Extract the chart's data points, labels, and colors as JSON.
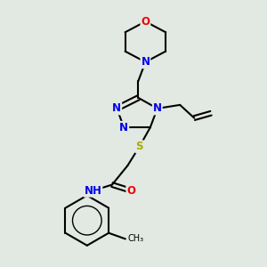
{
  "bg_color": "#e2e8e2",
  "bond_color": "#000000",
  "bond_width": 1.5,
  "atom_colors": {
    "N": "#0000ee",
    "O": "#ee0000",
    "S": "#aaaa00",
    "H": "#708090",
    "C": "#000000"
  },
  "font_size_atom": 8.5,
  "font_size_nh": 8.5,
  "fig_w": 3.0,
  "fig_h": 3.0,
  "xlim": [
    0,
    10
  ],
  "ylim": [
    0,
    11
  ]
}
